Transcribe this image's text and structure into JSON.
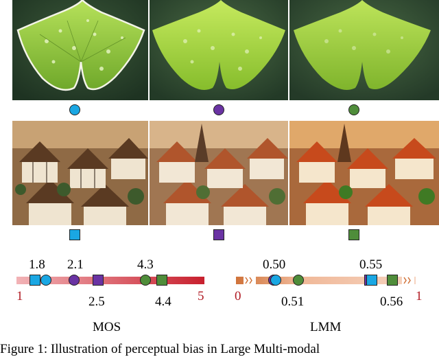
{
  "colors": {
    "blue": "#1aa7e3",
    "purple": "#6a33a3",
    "green": "#4f8d3a",
    "mos_bar_start": "#f2b3b6",
    "mos_bar_end": "#c8202e",
    "lmm_bar_start": "#d0733a",
    "lmm_bar_end": "#f6d3bf",
    "endpoint_label": "#b01b24"
  },
  "top_row": {
    "images": [
      "leaf-edge-enhanced",
      "leaf-original",
      "leaf-slightly-blurred"
    ],
    "markers": [
      "circle-blue",
      "circle-purple",
      "circle-green"
    ]
  },
  "bottom_row": {
    "images": [
      "village-oversharpened",
      "village-original",
      "village-saturated"
    ],
    "markers": [
      "square-blue",
      "square-purple",
      "square-green"
    ]
  },
  "mos_scale": {
    "title": "MOS",
    "min_label": "1",
    "max_label": "5",
    "min": 1,
    "max": 5,
    "points": [
      {
        "label": "1.8",
        "value": 1.8,
        "shape": "square",
        "color": "blue"
      },
      {
        "label": "",
        "value": 1.8,
        "shape": "circle",
        "color": "blue"
      },
      {
        "label": "2.1",
        "value": 2.1,
        "shape": "circle",
        "color": "purple"
      },
      {
        "label": "2.5",
        "value": 2.5,
        "shape": "square",
        "color": "purple"
      },
      {
        "label": "4.3",
        "value": 4.3,
        "shape": "circle",
        "color": "green"
      },
      {
        "label": "4.4",
        "value": 4.4,
        "shape": "square",
        "color": "green"
      }
    ]
  },
  "lmm_scale": {
    "title": "LMM",
    "min_label": "0",
    "max_label": "1",
    "min": 0,
    "max": 1,
    "points": [
      {
        "label": "0.50",
        "value": 0.5,
        "shape": "circle",
        "color": "purple"
      },
      {
        "label": "",
        "value": 0.5,
        "shape": "circle",
        "color": "blue"
      },
      {
        "label": "0.51",
        "value": 0.51,
        "shape": "circle",
        "color": "green"
      },
      {
        "label": "0.55",
        "value": 0.55,
        "shape": "square",
        "color": "purple"
      },
      {
        "label": "",
        "value": 0.55,
        "shape": "square",
        "color": "blue"
      },
      {
        "label": "0.56",
        "value": 0.56,
        "shape": "square",
        "color": "green"
      }
    ]
  },
  "caption": "Figure 1: Illustration of perceptual bias in Large Multi-modal"
}
